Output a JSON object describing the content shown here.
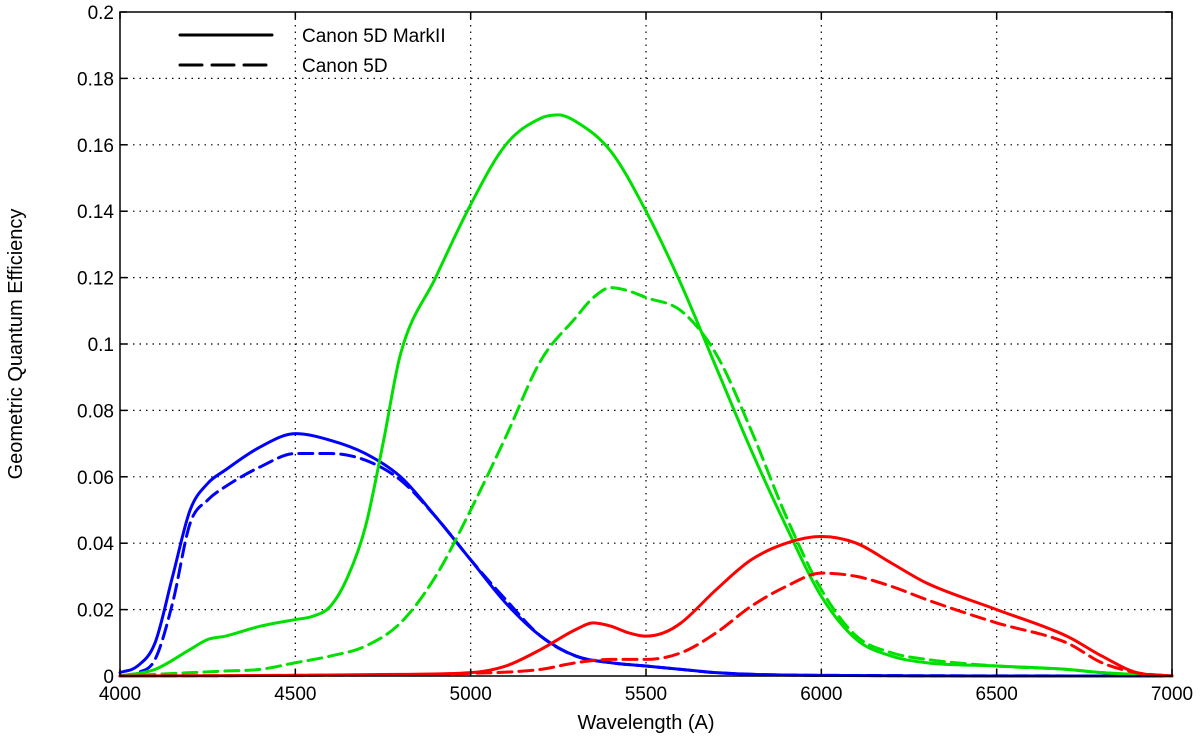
{
  "chart_data": {
    "type": "line",
    "xlabel": "Wavelength (A)",
    "ylabel": "Geometric Quantum Efficiency",
    "xlim": [
      4000,
      7000
    ],
    "ylim": [
      0,
      0.2
    ],
    "xticks": [
      4000,
      4500,
      5000,
      5500,
      6000,
      6500,
      7000
    ],
    "xtick_labels": [
      "4000",
      "4500",
      "5000",
      "5500",
      "6000",
      "6500",
      "7000"
    ],
    "yticks": [
      0,
      0.02,
      0.04,
      0.06,
      0.08,
      0.1,
      0.12,
      0.14,
      0.16,
      0.18,
      0.2
    ],
    "ytick_labels": [
      "0",
      "0.02",
      "0.04",
      "0.06",
      "0.08",
      "0.1",
      "0.12",
      "0.14",
      "0.16",
      "0.18",
      "0.2"
    ],
    "grid": true,
    "legend_position": "top-left",
    "legend": [
      {
        "label": "Canon 5D MarkII",
        "style": "solid"
      },
      {
        "label": "Canon 5D",
        "style": "dashed"
      }
    ],
    "series": [
      {
        "color": "#0000ff",
        "style": "solid",
        "x": [
          4000,
          4050,
          4100,
          4150,
          4200,
          4250,
          4300,
          4400,
          4500,
          4600,
          4700,
          4800,
          4900,
          5000,
          5100,
          5200,
          5300,
          5400,
          5500,
          5600,
          5700,
          5800,
          6000,
          6500,
          7000
        ],
        "y": [
          0.001,
          0.003,
          0.01,
          0.03,
          0.05,
          0.058,
          0.062,
          0.069,
          0.073,
          0.071,
          0.067,
          0.06,
          0.048,
          0.035,
          0.022,
          0.012,
          0.006,
          0.004,
          0.003,
          0.002,
          0.001,
          0.0005,
          0.0002,
          0,
          0
        ]
      },
      {
        "color": "#0000ff",
        "style": "dashed",
        "x": [
          4000,
          4050,
          4100,
          4150,
          4200,
          4250,
          4300,
          4400,
          4500,
          4600,
          4700,
          4800,
          4900,
          5000,
          5100,
          5200,
          5300,
          5400,
          5500,
          5600,
          5700,
          6000,
          7000
        ],
        "y": [
          0,
          0.001,
          0.005,
          0.022,
          0.046,
          0.053,
          0.057,
          0.063,
          0.067,
          0.067,
          0.065,
          0.059,
          0.048,
          0.035,
          0.023,
          0.012,
          0.006,
          0.004,
          0.003,
          0.002,
          0.001,
          0.0002,
          0
        ]
      },
      {
        "color": "#00e000",
        "style": "solid",
        "x": [
          4000,
          4100,
          4200,
          4250,
          4300,
          4400,
          4500,
          4550,
          4600,
          4650,
          4700,
          4750,
          4800,
          4900,
          5000,
          5100,
          5200,
          5250,
          5300,
          5400,
          5500,
          5600,
          5700,
          5800,
          5900,
          6000,
          6100,
          6200,
          6300,
          6500,
          6700,
          6800,
          7000
        ],
        "y": [
          0,
          0.002,
          0.008,
          0.011,
          0.012,
          0.015,
          0.017,
          0.018,
          0.021,
          0.03,
          0.045,
          0.07,
          0.097,
          0.12,
          0.142,
          0.16,
          0.168,
          0.169,
          0.167,
          0.158,
          0.14,
          0.118,
          0.093,
          0.068,
          0.045,
          0.024,
          0.011,
          0.006,
          0.004,
          0.003,
          0.002,
          0.001,
          0
        ]
      },
      {
        "color": "#00e000",
        "style": "dashed",
        "x": [
          4000,
          4100,
          4200,
          4300,
          4400,
          4500,
          4600,
          4700,
          4800,
          4900,
          5000,
          5100,
          5200,
          5300,
          5350,
          5400,
          5450,
          5500,
          5600,
          5700,
          5800,
          5900,
          6000,
          6100,
          6200,
          6300,
          6500,
          6700,
          6800,
          7000
        ],
        "y": [
          0,
          0.0005,
          0.001,
          0.0015,
          0.002,
          0.004,
          0.006,
          0.009,
          0.016,
          0.03,
          0.05,
          0.072,
          0.095,
          0.108,
          0.114,
          0.117,
          0.116,
          0.114,
          0.11,
          0.097,
          0.074,
          0.048,
          0.026,
          0.012,
          0.007,
          0.005,
          0.003,
          0.002,
          0.001,
          0
        ]
      },
      {
        "color": "#ff0000",
        "style": "solid",
        "x": [
          4000,
          4500,
          4800,
          5000,
          5100,
          5200,
          5300,
          5350,
          5400,
          5450,
          5500,
          5550,
          5600,
          5700,
          5800,
          5900,
          6000,
          6100,
          6200,
          6300,
          6500,
          6700,
          6800,
          6900,
          7000
        ],
        "y": [
          0,
          0.0002,
          0.0005,
          0.001,
          0.003,
          0.008,
          0.014,
          0.016,
          0.015,
          0.013,
          0.012,
          0.013,
          0.016,
          0.026,
          0.035,
          0.04,
          0.042,
          0.04,
          0.034,
          0.028,
          0.02,
          0.012,
          0.006,
          0.001,
          0
        ]
      },
      {
        "color": "#ff0000",
        "style": "dashed",
        "x": [
          4000,
          4500,
          5000,
          5200,
          5300,
          5400,
          5500,
          5600,
          5700,
          5800,
          5900,
          6000,
          6100,
          6200,
          6300,
          6500,
          6700,
          6800,
          6900,
          7000
        ],
        "y": [
          0,
          0.0002,
          0.0008,
          0.002,
          0.004,
          0.005,
          0.005,
          0.007,
          0.013,
          0.021,
          0.027,
          0.031,
          0.03,
          0.027,
          0.023,
          0.016,
          0.01,
          0.004,
          0.001,
          0
        ]
      }
    ]
  }
}
